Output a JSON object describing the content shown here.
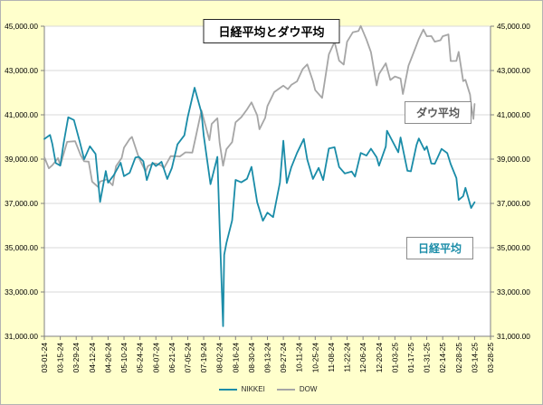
{
  "annotations": {
    "dow_label": "ダウ平均",
    "nikkei_label": "日経平均"
  },
  "legend": {
    "nikkei": "NIKKEI",
    "dow": "DOW"
  },
  "colors": {
    "background": "#FFFFCC",
    "plot_background": "#FFFFFF",
    "gridline": "#D9D9D9",
    "axis": "#808080",
    "text": "#000000",
    "nikkei": "#1A8CA8",
    "dow": "#A6A6A6"
  },
  "chart_data": {
    "type": "line",
    "title": "日経平均とダウ平均",
    "xlabel": "",
    "ylabel": "",
    "ylim": [
      31000,
      45000
    ],
    "ytick_step": 2000,
    "grid": true,
    "legend_position": "bottom",
    "x_start": "2024-03-01",
    "x_end": "2025-03-28",
    "x_tick_interval_days": 14,
    "x_tick_labels": [
      "03-01-24",
      "03-15-24",
      "03-29-24",
      "04-12-24",
      "04-26-24",
      "05-10-24",
      "05-24-24",
      "06-07-24",
      "06-21-24",
      "07-05-24",
      "07-19-24",
      "08-02-24",
      "08-16-24",
      "08-30-24",
      "09-13-24",
      "09-27-24",
      "10-11-24",
      "10-25-24",
      "11-08-24",
      "11-22-24",
      "12-06-24",
      "12-20-24",
      "01-03-25",
      "01-17-25",
      "01-31-25",
      "02-14-25",
      "02-28-25",
      "03-14-25",
      "03-28-25"
    ],
    "y_tick_labels": [
      "31,000.00",
      "33,000.00",
      "35,000.00",
      "37,000.00",
      "39,000.00",
      "41,000.00",
      "43,000.00",
      "45,000.00"
    ],
    "series": [
      {
        "name": "NIKKEI",
        "color": "#1A8CA8",
        "points": [
          [
            "2024-03-01",
            39911
          ],
          [
            "2024-03-06",
            40091
          ],
          [
            "2024-03-08",
            39688
          ],
          [
            "2024-03-11",
            38820
          ],
          [
            "2024-03-15",
            38708
          ],
          [
            "2024-03-18",
            39740
          ],
          [
            "2024-03-22",
            40888
          ],
          [
            "2024-03-27",
            40762
          ],
          [
            "2024-04-01",
            39803
          ],
          [
            "2024-04-05",
            38992
          ],
          [
            "2024-04-10",
            39581
          ],
          [
            "2024-04-15",
            39232
          ],
          [
            "2024-04-19",
            37068
          ],
          [
            "2024-04-24",
            38460
          ],
          [
            "2024-04-26",
            37935
          ],
          [
            "2024-05-01",
            38274
          ],
          [
            "2024-05-07",
            38835
          ],
          [
            "2024-05-10",
            38229
          ],
          [
            "2024-05-15",
            38385
          ],
          [
            "2024-05-20",
            39069
          ],
          [
            "2024-05-23",
            39103
          ],
          [
            "2024-05-27",
            38900
          ],
          [
            "2024-05-30",
            38054
          ],
          [
            "2024-06-04",
            38837
          ],
          [
            "2024-06-07",
            38684
          ],
          [
            "2024-06-12",
            38876
          ],
          [
            "2024-06-17",
            38102
          ],
          [
            "2024-06-21",
            38596
          ],
          [
            "2024-06-26",
            39667
          ],
          [
            "2024-07-02",
            40075
          ],
          [
            "2024-07-05",
            40912
          ],
          [
            "2024-07-11",
            42224
          ],
          [
            "2024-07-17",
            41098
          ],
          [
            "2024-07-19",
            40064
          ],
          [
            "2024-07-25",
            37869
          ],
          [
            "2024-07-31",
            39102
          ],
          [
            "2024-08-02",
            35910
          ],
          [
            "2024-08-05",
            31458
          ],
          [
            "2024-08-06",
            34675
          ],
          [
            "2024-08-08",
            35214
          ],
          [
            "2024-08-13",
            36232
          ],
          [
            "2024-08-16",
            38062
          ],
          [
            "2024-08-21",
            37952
          ],
          [
            "2024-08-26",
            38110
          ],
          [
            "2024-08-30",
            38648
          ],
          [
            "2024-09-04",
            37048
          ],
          [
            "2024-09-09",
            36216
          ],
          [
            "2024-09-13",
            36582
          ],
          [
            "2024-09-18",
            36380
          ],
          [
            "2024-09-24",
            37940
          ],
          [
            "2024-09-27",
            39830
          ],
          [
            "2024-09-30",
            37920
          ],
          [
            "2024-10-04",
            38636
          ],
          [
            "2024-10-09",
            39278
          ],
          [
            "2024-10-15",
            39911
          ],
          [
            "2024-10-18",
            38982
          ],
          [
            "2024-10-23",
            38105
          ],
          [
            "2024-10-28",
            38606
          ],
          [
            "2024-11-01",
            38054
          ],
          [
            "2024-11-06",
            39481
          ],
          [
            "2024-11-11",
            39533
          ],
          [
            "2024-11-15",
            38643
          ],
          [
            "2024-11-20",
            38352
          ],
          [
            "2024-11-26",
            38442
          ],
          [
            "2024-11-29",
            38208
          ],
          [
            "2024-12-04",
            39277
          ],
          [
            "2024-12-09",
            39160
          ],
          [
            "2024-12-13",
            39470
          ],
          [
            "2024-12-18",
            39082
          ],
          [
            "2024-12-20",
            38702
          ],
          [
            "2024-12-26",
            39568
          ],
          [
            "2024-12-27",
            40281
          ],
          [
            "2025-01-06",
            39307
          ],
          [
            "2025-01-08",
            39981
          ],
          [
            "2025-01-14",
            38474
          ],
          [
            "2025-01-17",
            38451
          ],
          [
            "2025-01-22",
            39646
          ],
          [
            "2025-01-24",
            39932
          ],
          [
            "2025-01-29",
            39414
          ],
          [
            "2025-01-31",
            39572
          ],
          [
            "2025-02-04",
            38798
          ],
          [
            "2025-02-07",
            38787
          ],
          [
            "2025-02-13",
            39461
          ],
          [
            "2025-02-18",
            39270
          ],
          [
            "2025-02-21",
            38776
          ],
          [
            "2025-02-26",
            38142
          ],
          [
            "2025-02-28",
            37156
          ],
          [
            "2025-03-04",
            37331
          ],
          [
            "2025-03-06",
            37704
          ],
          [
            "2025-03-11",
            36793
          ],
          [
            "2025-03-14",
            37053
          ]
        ]
      },
      {
        "name": "DOW",
        "color": "#A6A6A6",
        "points": [
          [
            "2024-03-01",
            39087
          ],
          [
            "2024-03-05",
            38585
          ],
          [
            "2024-03-08",
            38722
          ],
          [
            "2024-03-13",
            39043
          ],
          [
            "2024-03-15",
            38715
          ],
          [
            "2024-03-21",
            39781
          ],
          [
            "2024-03-28",
            39807
          ],
          [
            "2024-04-02",
            39170
          ],
          [
            "2024-04-05",
            38904
          ],
          [
            "2024-04-09",
            38884
          ],
          [
            "2024-04-12",
            37983
          ],
          [
            "2024-04-17",
            37753
          ],
          [
            "2024-04-19",
            37986
          ],
          [
            "2024-04-25",
            38086
          ],
          [
            "2024-04-30",
            37816
          ],
          [
            "2024-05-03",
            38676
          ],
          [
            "2024-05-08",
            39056
          ],
          [
            "2024-05-10",
            39513
          ],
          [
            "2024-05-15",
            39908
          ],
          [
            "2024-05-17",
            40004
          ],
          [
            "2024-05-23",
            39065
          ],
          [
            "2024-05-29",
            38441
          ],
          [
            "2024-05-31",
            38686
          ],
          [
            "2024-06-05",
            38807
          ],
          [
            "2024-06-07",
            38799
          ],
          [
            "2024-06-12",
            38712
          ],
          [
            "2024-06-14",
            38589
          ],
          [
            "2024-06-20",
            39135
          ],
          [
            "2024-06-26",
            39128
          ],
          [
            "2024-06-28",
            39119
          ],
          [
            "2024-07-03",
            39308
          ],
          [
            "2024-07-09",
            39292
          ],
          [
            "2024-07-12",
            40001
          ],
          [
            "2024-07-17",
            41198
          ],
          [
            "2024-07-24",
            39854
          ],
          [
            "2024-07-26",
            40589
          ],
          [
            "2024-07-31",
            40843
          ],
          [
            "2024-08-02",
            39737
          ],
          [
            "2024-08-05",
            38703
          ],
          [
            "2024-08-08",
            39446
          ],
          [
            "2024-08-13",
            39766
          ],
          [
            "2024-08-16",
            40660
          ],
          [
            "2024-08-21",
            40890
          ],
          [
            "2024-08-26",
            41240
          ],
          [
            "2024-08-30",
            41563
          ],
          [
            "2024-09-04",
            40975
          ],
          [
            "2024-09-06",
            40345
          ],
          [
            "2024-09-11",
            40862
          ],
          [
            "2024-09-13",
            41394
          ],
          [
            "2024-09-19",
            42025
          ],
          [
            "2024-09-24",
            42208
          ],
          [
            "2024-09-27",
            42313
          ],
          [
            "2024-10-01",
            42157
          ],
          [
            "2024-10-04",
            42353
          ],
          [
            "2024-10-09",
            42512
          ],
          [
            "2024-10-14",
            43065
          ],
          [
            "2024-10-18",
            43276
          ],
          [
            "2024-10-23",
            42515
          ],
          [
            "2024-10-25",
            42114
          ],
          [
            "2024-10-31",
            41763
          ],
          [
            "2024-11-01",
            42052
          ],
          [
            "2024-11-06",
            43730
          ],
          [
            "2024-11-11",
            44293
          ],
          [
            "2024-11-15",
            43445
          ],
          [
            "2024-11-19",
            43269
          ],
          [
            "2024-11-22",
            44297
          ],
          [
            "2024-11-27",
            44722
          ],
          [
            "2024-12-02",
            44782
          ],
          [
            "2024-12-04",
            45014
          ],
          [
            "2024-12-09",
            44402
          ],
          [
            "2024-12-13",
            43828
          ],
          [
            "2024-12-18",
            42327
          ],
          [
            "2024-12-20",
            42840
          ],
          [
            "2024-12-26",
            43326
          ],
          [
            "2024-12-30",
            42573
          ],
          [
            "2025-01-03",
            42732
          ],
          [
            "2025-01-08",
            42635
          ],
          [
            "2025-01-10",
            41938
          ],
          [
            "2025-01-15",
            43222
          ],
          [
            "2025-01-17",
            43488
          ],
          [
            "2025-01-22",
            44157
          ],
          [
            "2025-01-24",
            44424
          ],
          [
            "2025-01-28",
            44850
          ],
          [
            "2025-01-31",
            44545
          ],
          [
            "2025-02-04",
            44556
          ],
          [
            "2025-02-07",
            44303
          ],
          [
            "2025-02-12",
            44369
          ],
          [
            "2025-02-14",
            44546
          ],
          [
            "2025-02-19",
            44627
          ],
          [
            "2025-02-21",
            43428
          ],
          [
            "2025-02-26",
            43433
          ],
          [
            "2025-02-28",
            43841
          ],
          [
            "2025-03-04",
            42521
          ],
          [
            "2025-03-06",
            42579
          ],
          [
            "2025-03-10",
            41912
          ],
          [
            "2025-03-11",
            41433
          ],
          [
            "2025-03-13",
            40814
          ],
          [
            "2025-03-14",
            41488
          ]
        ]
      }
    ]
  }
}
